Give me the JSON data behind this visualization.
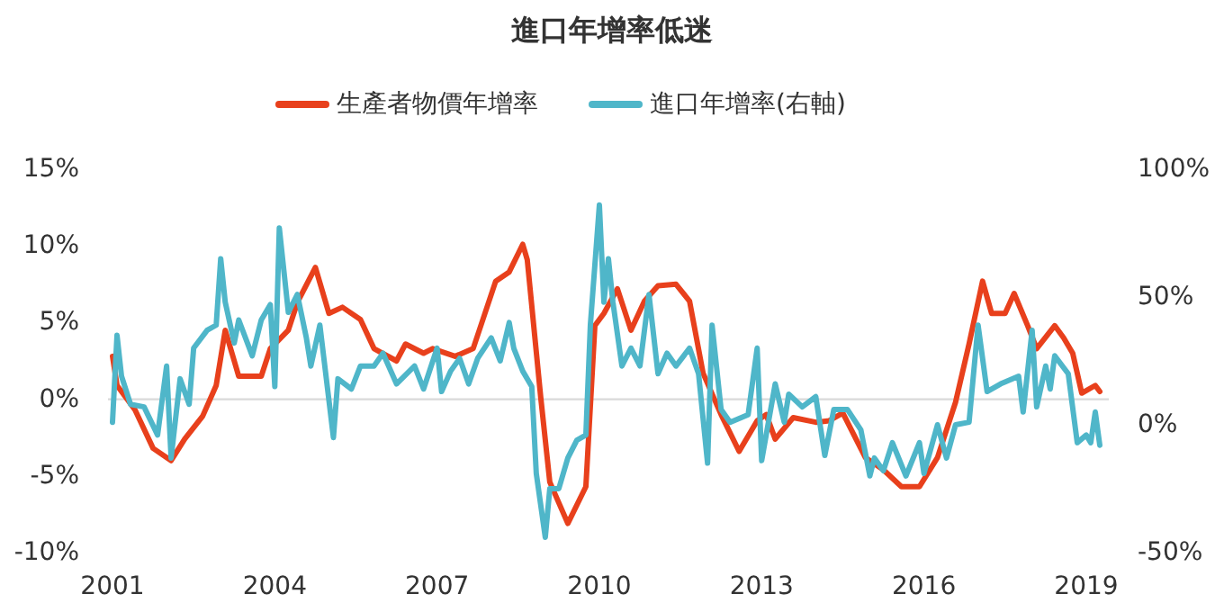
{
  "chart_data": {
    "type": "line",
    "title": "進口年增率低迷",
    "legend": "top",
    "xlim": [
      "2000-12",
      "2019-06"
    ],
    "xticks": [
      "2001",
      "2004",
      "2007",
      "2010",
      "2013",
      "2016",
      "2019"
    ],
    "ylim": [
      -10,
      15
    ],
    "yticks": [
      {
        "value": -10,
        "label": "-10%"
      },
      {
        "value": -5,
        "label": "-5%"
      },
      {
        "value": 0,
        "label": "0%"
      },
      {
        "value": 5,
        "label": "5%"
      },
      {
        "value": 10,
        "label": "10%"
      },
      {
        "value": 15,
        "label": "15%"
      }
    ],
    "y2lim": [
      -50,
      100
    ],
    "y2ticks": [
      {
        "value": -50,
        "label": "-50%"
      },
      {
        "value": 0,
        "label": "0%"
      },
      {
        "value": 50,
        "label": "50%"
      },
      {
        "value": 100,
        "label": "100%"
      }
    ],
    "ref_lines": [
      {
        "axis": "y",
        "value": 0,
        "color": "#d9d9d9"
      }
    ],
    "series": [
      {
        "name": "生產者物價年增率",
        "color": "#e8401c",
        "x": [
          "2001-01",
          "2001-02",
          "2001-06",
          "2001-10",
          "2002-02",
          "2002-05",
          "2002-09",
          "2002-12",
          "2003-02",
          "2003-05",
          "2003-10",
          "2003-12",
          "2004-04",
          "2004-06",
          "2004-10",
          "2005-01",
          "2005-04",
          "2005-08",
          "2005-11",
          "2006-04",
          "2006-06",
          "2006-10",
          "2006-12",
          "2007-05",
          "2007-09",
          "2008-02",
          "2008-05",
          "2008-08",
          "2008-09",
          "2008-12",
          "2009-02",
          "2009-06",
          "2009-10",
          "2009-12",
          "2010-02",
          "2010-05",
          "2010-08",
          "2010-11",
          "2011-02",
          "2011-06",
          "2011-09",
          "2011-12",
          "2012-04",
          "2012-08",
          "2012-12",
          "2013-02",
          "2013-04",
          "2013-08",
          "2014-01",
          "2014-04",
          "2014-07",
          "2014-12",
          "2015-04",
          "2015-08",
          "2015-12",
          "2016-04",
          "2016-08",
          "2016-11",
          "2017-02",
          "2017-04",
          "2017-07",
          "2017-09",
          "2017-12",
          "2018-02",
          "2018-06",
          "2018-08",
          "2018-10",
          "2018-12",
          "2019-03",
          "2019-04"
        ],
        "values": [
          2.8,
          0.9,
          -0.7,
          -3.2,
          -4.0,
          -2.6,
          -1.1,
          0.9,
          4.5,
          1.5,
          1.5,
          3.3,
          4.5,
          6.3,
          8.6,
          5.6,
          6.0,
          5.2,
          3.3,
          2.5,
          3.6,
          3.0,
          3.3,
          2.8,
          3.3,
          7.7,
          8.3,
          10.1,
          9.1,
          0.1,
          -5.4,
          -8.1,
          -5.7,
          4.8,
          5.6,
          7.2,
          4.5,
          6.4,
          7.4,
          7.5,
          6.4,
          1.7,
          -1.0,
          -3.4,
          -1.4,
          -1.0,
          -2.6,
          -1.2,
          -1.5,
          -1.4,
          -0.9,
          -3.8,
          -4.6,
          -5.7,
          -5.7,
          -3.8,
          -0.2,
          3.6,
          7.7,
          5.6,
          5.6,
          6.9,
          4.8,
          3.3,
          4.8,
          4.0,
          3.0,
          0.4,
          0.9,
          0.5
        ]
      },
      {
        "name": "進口年增率(右軸)",
        "color": "#4fb6c9",
        "axis": "y2",
        "x": [
          "2001-01",
          "2001-02",
          "2001-03",
          "2001-05",
          "2001-08",
          "2001-11",
          "2002-01",
          "2002-02",
          "2002-04",
          "2002-06",
          "2002-07",
          "2002-10",
          "2002-12",
          "2003-01",
          "2003-02",
          "2003-04",
          "2003-05",
          "2003-08",
          "2003-10",
          "2003-12",
          "2004-01",
          "2004-02",
          "2004-04",
          "2004-06",
          "2004-08",
          "2004-09",
          "2004-11",
          "2005-02",
          "2005-03",
          "2005-06",
          "2005-08",
          "2005-11",
          "2006-01",
          "2006-04",
          "2006-08",
          "2006-10",
          "2007-01",
          "2007-02",
          "2007-04",
          "2007-06",
          "2007-08",
          "2007-10",
          "2008-01",
          "2008-03",
          "2008-05",
          "2008-06",
          "2008-08",
          "2008-10",
          "2008-11",
          "2009-01",
          "2009-02",
          "2009-04",
          "2009-06",
          "2009-08",
          "2009-10",
          "2009-11",
          "2010-01",
          "2010-02",
          "2010-03",
          "2010-04",
          "2010-06",
          "2010-08",
          "2010-10",
          "2010-12",
          "2011-02",
          "2011-04",
          "2011-06",
          "2011-09",
          "2011-11",
          "2012-01",
          "2012-02",
          "2012-04",
          "2012-06",
          "2012-10",
          "2012-12",
          "2013-01",
          "2013-04",
          "2013-06",
          "2013-07",
          "2013-10",
          "2014-01",
          "2014-03",
          "2014-05",
          "2014-08",
          "2014-11",
          "2015-01",
          "2015-02",
          "2015-04",
          "2015-06",
          "2015-09",
          "2015-12",
          "2016-01",
          "2016-04",
          "2016-06",
          "2016-08",
          "2016-11",
          "2017-01",
          "2017-03",
          "2017-06",
          "2017-10",
          "2017-11",
          "2018-01",
          "2018-02",
          "2018-04",
          "2018-05",
          "2018-06",
          "2018-09",
          "2018-11",
          "2019-01",
          "2019-02",
          "2019-03",
          "2019-04"
        ],
        "values": [
          1,
          35,
          19,
          8,
          7,
          -4,
          23,
          -13,
          18,
          8,
          30,
          37,
          39,
          65,
          48,
          32,
          41,
          27,
          41,
          47,
          15,
          77,
          44,
          51,
          34,
          23,
          39,
          -5,
          18,
          14,
          23,
          23,
          28,
          16,
          23,
          14,
          30,
          13,
          21,
          26,
          16,
          26,
          34,
          25,
          40,
          30,
          21,
          15,
          -19,
          -44,
          -25,
          -25,
          -13,
          -6,
          -4,
          39,
          86,
          48,
          65,
          48,
          23,
          30,
          23,
          51,
          20,
          28,
          23,
          30,
          20,
          -15,
          39,
          6,
          1,
          4,
          30,
          -14,
          16,
          1,
          12,
          7,
          11,
          -12,
          6,
          6,
          -2,
          -20,
          -13,
          -18,
          -7,
          -20,
          -7,
          -19,
          0,
          -13,
          0,
          1,
          39,
          13,
          16,
          19,
          5,
          37,
          7,
          23,
          14,
          27,
          20,
          -7,
          -4,
          -7,
          5,
          -8
        ]
      }
    ]
  }
}
